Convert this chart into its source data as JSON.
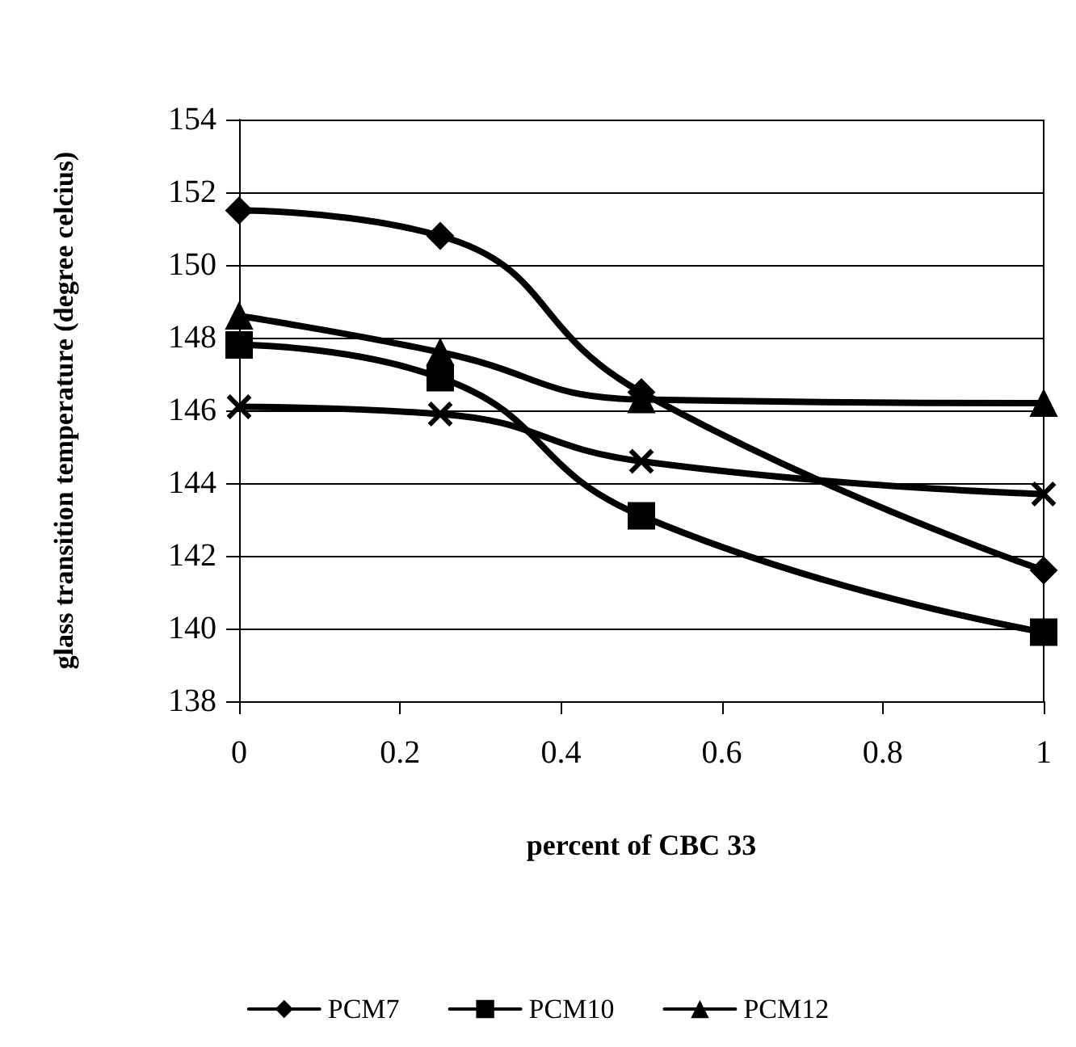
{
  "chart_data": {
    "type": "line",
    "xlabel": "percent of CBC 33",
    "ylabel": "glass transition temperature (degree celcius)",
    "x": [
      0,
      0.25,
      0.5,
      1
    ],
    "series": [
      {
        "name": "PCM7",
        "color": "#000000",
        "marker": "diamond",
        "values": [
          151.5,
          150.8,
          146.5,
          141.6
        ]
      },
      {
        "name": "PCM10",
        "color": "#000000",
        "marker": "square",
        "values": [
          147.8,
          146.9,
          143.1,
          139.9
        ]
      },
      {
        "name": "PCM12",
        "color": "#000000",
        "marker": "triangle",
        "values": [
          148.6,
          147.6,
          146.3,
          146.2
        ]
      },
      {
        "color": "#000000",
        "marker": "cross",
        "values": [
          146.1,
          145.9,
          144.6,
          143.7
        ]
      }
    ],
    "xlim": [
      0,
      1
    ],
    "xticks": [
      0,
      0.2,
      0.4,
      0.6,
      0.8,
      1
    ],
    "ylim": [
      138,
      154
    ],
    "yticks": [
      138,
      140,
      142,
      144,
      146,
      148,
      150,
      152,
      154
    ],
    "grid": "y",
    "legend": "bottom",
    "line_style": "solid"
  }
}
